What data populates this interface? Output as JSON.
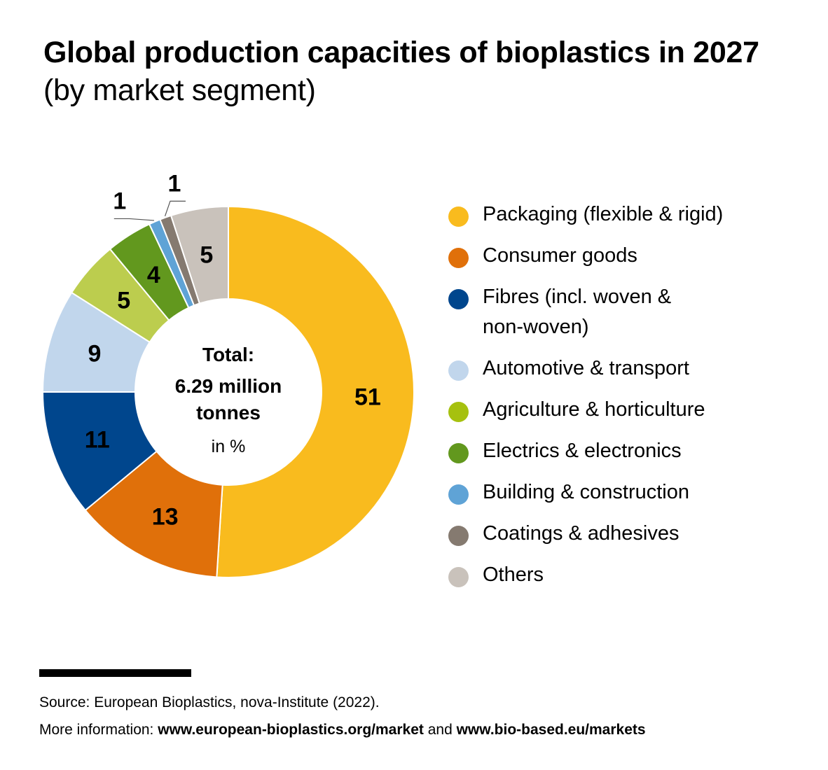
{
  "title": {
    "bold": "Global production capacities of bioplastics in 2027",
    "light": "(by market segment)"
  },
  "chart_data": {
    "type": "pie",
    "title": "Global production capacities of bioplastics in 2027 (by market segment)",
    "center": {
      "line1": "Total:",
      "line2": "6.29 million",
      "line3": "tonnes",
      "unit": "in %"
    },
    "slices": [
      {
        "name": "Packaging (flexible & rigid)",
        "value": 51,
        "label": "51",
        "color": "#F9BB1E"
      },
      {
        "name": "Consumer goods",
        "value": 13,
        "label": "13",
        "color": "#E0700A"
      },
      {
        "name": "Fibres (incl. woven & non-woven)",
        "value": 11,
        "label": "11",
        "color": "#00468D"
      },
      {
        "name": "Automotive & transport",
        "value": 9,
        "label": "9",
        "color": "#C1D6EC"
      },
      {
        "name": "Agriculture & horticulture",
        "value": 5,
        "label": "5",
        "color": "#BCCD4E"
      },
      {
        "name": "Electrics & electronics",
        "value": 4,
        "label": "4",
        "color": "#62981E"
      },
      {
        "name": "Building & construction",
        "value": 1,
        "label": "1",
        "color": "#5FA3D6"
      },
      {
        "name": "Coatings & adhesives",
        "value": 1,
        "label": "1",
        "color": "#857A70"
      },
      {
        "name": "Others",
        "value": 5,
        "label": "5",
        "color": "#C9C2BB"
      }
    ],
    "legend_position": "right"
  },
  "legend": [
    {
      "label_1": "Packaging (flexible & rigid)",
      "color": "#F9BB1E"
    },
    {
      "label_1": "Consumer goods",
      "color": "#E0700A"
    },
    {
      "label_1": "Fibres (incl. woven &",
      "label_2": "non-woven)",
      "color": "#00468D"
    },
    {
      "label_1": "Automotive & transport",
      "color": "#C1D6EC"
    },
    {
      "label_1": "Agriculture & horticulture",
      "color": "#A6C10F"
    },
    {
      "label_1": "Electrics & electronics",
      "color": "#62981E"
    },
    {
      "label_1": "Building & construction",
      "color": "#5FA3D6"
    },
    {
      "label_1": "Coatings & adhesives",
      "color": "#857A70"
    },
    {
      "label_1": "Others",
      "color": "#C9C2BB"
    }
  ],
  "footer": {
    "source": "Source: European Bioplastics, nova-Institute (2022).",
    "more_prefix": "More information: ",
    "link1": "www.european-bioplastics.org/market",
    "and": " and ",
    "link2": "www.bio-based.eu/markets"
  }
}
